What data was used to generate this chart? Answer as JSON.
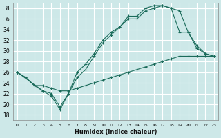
{
  "xlabel": "Humidex (Indice chaleur)",
  "bg_color": "#cde8e8",
  "grid_color": "#ffffff",
  "line_color": "#1a6b5a",
  "xlim": [
    -0.5,
    23.5
  ],
  "ylim": [
    17,
    39
  ],
  "xticks": [
    0,
    1,
    2,
    3,
    4,
    5,
    6,
    7,
    8,
    9,
    10,
    11,
    12,
    13,
    14,
    15,
    16,
    17,
    18,
    19,
    20,
    21,
    22,
    23
  ],
  "yticks": [
    18,
    20,
    22,
    24,
    26,
    28,
    30,
    32,
    34,
    36,
    38
  ],
  "line1_x": [
    0,
    1,
    2,
    3,
    4,
    5,
    6,
    7,
    8,
    9,
    10,
    11,
    12,
    13,
    14,
    15,
    16,
    17,
    18,
    19,
    20,
    21,
    22,
    23
  ],
  "line1_y": [
    26.0,
    25.0,
    23.5,
    22.5,
    21.5,
    19.0,
    22.0,
    25.0,
    26.5,
    29.0,
    31.5,
    33.0,
    34.5,
    36.5,
    36.5,
    38.0,
    38.5,
    38.5,
    38.0,
    37.5,
    33.5,
    31.0,
    29.5,
    29.0
  ],
  "line2_x": [
    0,
    3,
    4,
    5,
    6,
    7,
    8,
    9,
    10,
    11,
    12,
    13,
    14,
    15,
    16,
    17,
    18,
    19,
    20,
    21,
    22,
    23
  ],
  "line2_y": [
    26.0,
    22.5,
    22.0,
    19.5,
    22.0,
    26.0,
    27.5,
    29.5,
    32.0,
    33.5,
    34.5,
    36.0,
    36.0,
    37.5,
    38.0,
    38.5,
    38.0,
    33.5,
    33.5,
    30.5,
    29.5,
    29.0
  ],
  "line3_x": [
    0,
    1,
    2,
    3,
    4,
    5,
    6,
    7,
    8,
    9,
    10,
    11,
    12,
    13,
    14,
    15,
    16,
    17,
    18,
    19,
    20,
    21,
    22,
    23
  ],
  "line3_y": [
    26.0,
    25.0,
    23.5,
    23.5,
    23.0,
    22.5,
    22.5,
    23.0,
    23.5,
    24.0,
    24.5,
    25.0,
    25.5,
    26.0,
    26.5,
    27.0,
    27.5,
    28.0,
    28.5,
    29.0,
    29.0,
    29.0,
    29.0,
    29.0
  ]
}
